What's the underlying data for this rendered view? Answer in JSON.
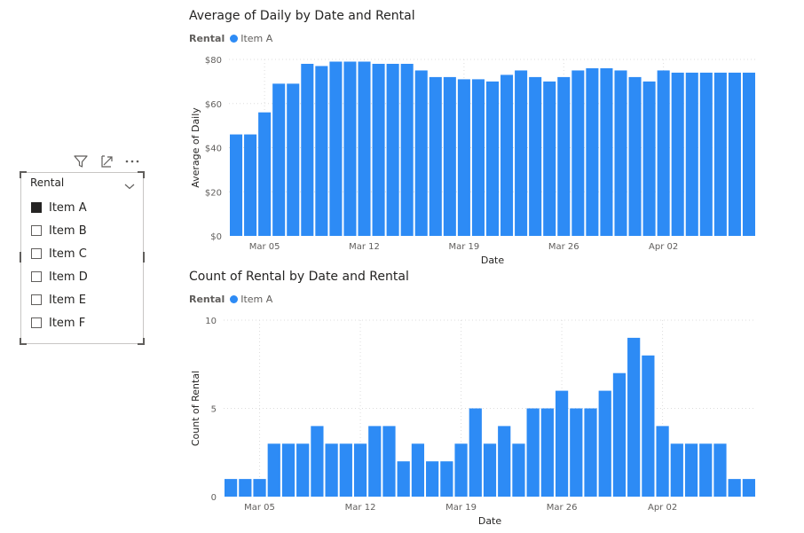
{
  "slicer": {
    "header": "Rental",
    "items": [
      {
        "label": "Item A",
        "checked": true
      },
      {
        "label": "Item B",
        "checked": false
      },
      {
        "label": "Item C",
        "checked": false
      },
      {
        "label": "Item D",
        "checked": false
      },
      {
        "label": "Item E",
        "checked": false
      },
      {
        "label": "Item F",
        "checked": false
      }
    ],
    "toolbar_icons": [
      "filter-icon",
      "focus-mode-icon",
      "more-options-icon"
    ]
  },
  "colors": {
    "series": "#2d8bf5",
    "text": "#252423",
    "axis": "#605e5c",
    "grid": "#dddddd"
  },
  "chart_data": [
    {
      "type": "bar",
      "title": "Average of Daily by Date and Rental",
      "legend_title": "Rental",
      "series_name": "Item A",
      "xlabel": "Date",
      "ylabel": "Average of Daily",
      "ylim": [
        0,
        80
      ],
      "yticks": [
        0,
        20,
        40,
        60,
        80
      ],
      "ytick_labels": [
        "$0",
        "$20",
        "$40",
        "$60",
        "$80"
      ],
      "xtick_labels": [
        {
          "label": "Mar 05",
          "index": 2
        },
        {
          "label": "Mar 12",
          "index": 9
        },
        {
          "label": "Mar 19",
          "index": 16
        },
        {
          "label": "Mar 26",
          "index": 23
        },
        {
          "label": "Apr 02",
          "index": 30
        }
      ],
      "categories": [
        "Mar 03",
        "Mar 04",
        "Mar 05",
        "Mar 06",
        "Mar 07",
        "Mar 08",
        "Mar 09",
        "Mar 10",
        "Mar 11",
        "Mar 12",
        "Mar 13",
        "Mar 14",
        "Mar 15",
        "Mar 16",
        "Mar 17",
        "Mar 18",
        "Mar 19",
        "Mar 20",
        "Mar 21",
        "Mar 22",
        "Mar 23",
        "Mar 24",
        "Mar 25",
        "Mar 26",
        "Mar 27",
        "Mar 28",
        "Mar 29",
        "Mar 30",
        "Mar 31",
        "Apr 01",
        "Apr 02",
        "Apr 03",
        "Apr 04",
        "Apr 05",
        "Apr 06",
        "Apr 07",
        "Apr 08"
      ],
      "values": [
        46,
        46,
        56,
        69,
        69,
        78,
        77,
        79,
        79,
        79,
        78,
        78,
        78,
        75,
        72,
        72,
        71,
        71,
        70,
        73,
        75,
        72,
        70,
        72,
        75,
        76,
        76,
        75,
        72,
        70,
        75,
        74,
        74,
        74,
        74,
        74,
        74
      ]
    },
    {
      "type": "bar",
      "title": "Count of Rental by Date and Rental",
      "legend_title": "Rental",
      "series_name": "Item A",
      "xlabel": "Date",
      "ylabel": "Count of Rental",
      "ylim": [
        0,
        10
      ],
      "yticks": [
        0,
        5,
        10
      ],
      "ytick_labels": [
        "0",
        "5",
        "10"
      ],
      "xtick_labels": [
        {
          "label": "Mar 05",
          "index": 2
        },
        {
          "label": "Mar 12",
          "index": 9
        },
        {
          "label": "Mar 19",
          "index": 16
        },
        {
          "label": "Mar 26",
          "index": 23
        },
        {
          "label": "Apr 02",
          "index": 30
        }
      ],
      "categories": [
        "Mar 03",
        "Mar 04",
        "Mar 05",
        "Mar 06",
        "Mar 07",
        "Mar 08",
        "Mar 09",
        "Mar 10",
        "Mar 11",
        "Mar 12",
        "Mar 13",
        "Mar 14",
        "Mar 15",
        "Mar 16",
        "Mar 17",
        "Mar 18",
        "Mar 19",
        "Mar 20",
        "Mar 21",
        "Mar 22",
        "Mar 23",
        "Mar 24",
        "Mar 25",
        "Mar 26",
        "Mar 27",
        "Mar 28",
        "Mar 29",
        "Mar 30",
        "Mar 31",
        "Apr 01",
        "Apr 02",
        "Apr 03",
        "Apr 04",
        "Apr 05",
        "Apr 06",
        "Apr 07",
        "Apr 08"
      ],
      "values": [
        1,
        1,
        1,
        3,
        3,
        3,
        4,
        3,
        3,
        3,
        4,
        4,
        2,
        3,
        2,
        2,
        3,
        5,
        3,
        4,
        3,
        5,
        5,
        6,
        5,
        5,
        6,
        7,
        9,
        8,
        4,
        3,
        3,
        3,
        3,
        1,
        1
      ]
    }
  ]
}
